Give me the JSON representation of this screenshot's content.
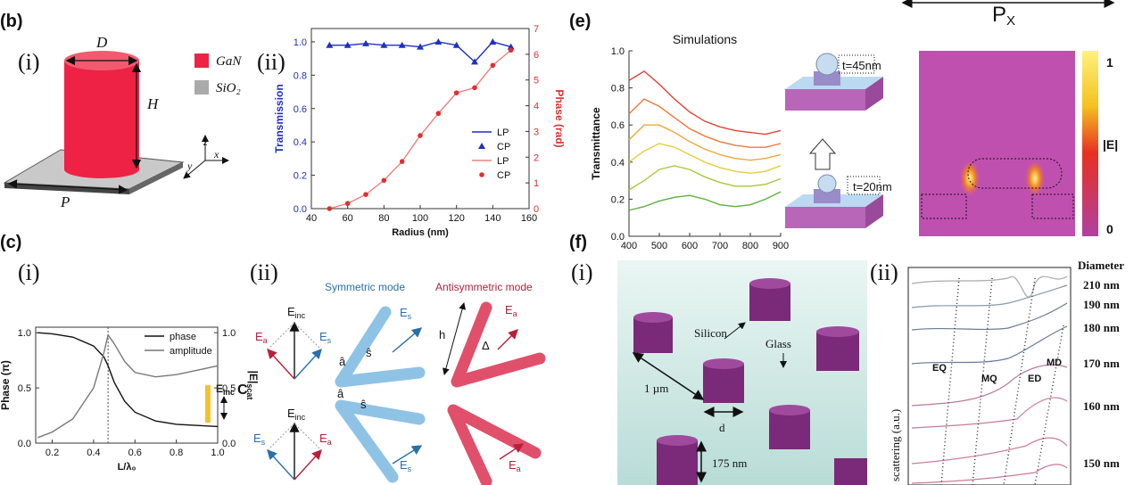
{
  "figure": {
    "px": {
      "text": "P",
      "sub": "X"
    },
    "b": {
      "label": "(b)",
      "i": "(i)",
      "ii": "(ii)",
      "D": "D",
      "H": "H",
      "P": "P",
      "axes": [
        "z",
        "y",
        "x"
      ],
      "legend": [
        "GaN",
        "SiO₂"
      ]
    },
    "c": {
      "label": "(c)",
      "i": "(i)",
      "ii": "(ii)",
      "field": {
        "text": "E",
        "sub": "inc"
      },
      "C": "C",
      "symmetric": "Symmetric mode",
      "antisymmetric": "Antisymmetric mode",
      "vectors": [
        {
          "text": "E",
          "sub": "inc"
        },
        {
          "text": "E",
          "sub": "a"
        },
        {
          "text": "E",
          "sub": "s"
        },
        {
          "text": "E",
          "sub": "inc"
        },
        {
          "text": "E",
          "sub": "s"
        },
        {
          "text": "E",
          "sub": "a"
        },
        {
          "text": "â"
        },
        {
          "text": "ŝ"
        },
        {
          "text": "E",
          "sub": "s"
        },
        {
          "text": "â"
        },
        {
          "text": "ŝ"
        },
        {
          "text": "E",
          "sub": "s"
        },
        {
          "text": "h"
        },
        {
          "text": "Δ"
        },
        {
          "text": "E",
          "sub": "a"
        },
        {
          "text": "E",
          "sub": "a"
        }
      ]
    },
    "e": {
      "label": "(e)",
      "t_top": "t=45nm",
      "t_bottom": "t=20nm",
      "cbar_max": "1",
      "cbar_label": "|E|",
      "cbar_min": "0"
    },
    "f": {
      "label": "(f)",
      "i": "(i)",
      "ii": "(ii)",
      "silicon": "Silicon",
      "glass": "Glass",
      "pitch": "1 µm",
      "d": "d",
      "height": "175 nm",
      "modes": [
        "EQ",
        "MQ",
        "ED",
        "MD"
      ],
      "y_label": "scattering (a.u.)",
      "diameter_title": "Diameter",
      "diameters": [
        "210 nm",
        "190 nm",
        "180 nm",
        "170 nm",
        "160 nm",
        "150 nm"
      ]
    }
  },
  "chart_data": [
    {
      "type": "line",
      "x_label": "Radius (nm)",
      "y_label": "Transmission",
      "y2_label": "Phase (rad)",
      "y_color": "#1f2fc8",
      "y2_color": "#e03030",
      "frame": true,
      "legend": "lower right",
      "x": [
        50,
        60,
        70,
        80,
        90,
        100,
        110,
        120,
        130,
        140,
        150
      ],
      "xlim": [
        40,
        160
      ],
      "xticks": [
        40,
        60,
        80,
        100,
        120,
        140,
        160
      ],
      "ylim": [
        0,
        1.08
      ],
      "yticks": [
        {
          "value": 0,
          "label": "0.0"
        },
        0.2,
        0.4,
        0.6,
        0.8,
        {
          "value": 1,
          "label": "1.0"
        }
      ],
      "y2lim": [
        0,
        7
      ],
      "y2ticks": [
        0,
        1,
        2,
        3,
        4,
        5,
        6,
        7
      ],
      "series": [
        {
          "name": "LP",
          "color": "#1f2fc8",
          "values": [
            0.98,
            0.98,
            0.99,
            0.98,
            0.98,
            0.97,
            1.0,
            0.98,
            0.88,
            1.0,
            0.97
          ]
        },
        {
          "name": "CP",
          "color": "#1f2fc8",
          "line": false,
          "marker": "triangle",
          "values": [
            0.98,
            0.98,
            0.99,
            0.98,
            0.98,
            0.97,
            1.0,
            0.98,
            0.88,
            1.0,
            0.97
          ]
        },
        {
          "name": "LP",
          "color": "#f08080",
          "axis": "y2",
          "values": [
            0,
            0.2,
            0.55,
            1.1,
            1.83,
            2.84,
            3.7,
            4.5,
            4.7,
            5.57,
            6.16
          ]
        },
        {
          "name": "CP",
          "color": "#e03030",
          "axis": "y2",
          "line": false,
          "marker": "circle",
          "values": [
            0,
            0.2,
            0.55,
            1.1,
            1.83,
            2.84,
            3.7,
            4.5,
            4.7,
            5.57,
            6.16
          ]
        }
      ]
    },
    {
      "type": "line",
      "x_label": "L/λ₀",
      "y_label": "Phase (π)",
      "y2_label": "|E|",
      "y2_label_sub": "scat",
      "frame": true,
      "legend": "upper right",
      "vline": 0.47,
      "x": [
        0.13,
        0.2,
        0.3,
        0.4,
        0.45,
        0.47,
        0.5,
        0.55,
        0.6,
        0.7,
        0.8,
        0.9,
        1.0
      ],
      "xlim": [
        0.12,
        1.0
      ],
      "xticks": [
        0.2,
        0.4,
        0.6,
        0.8,
        {
          "value": 1,
          "label": "1.0"
        }
      ],
      "ylim": [
        0,
        1.05
      ],
      "yticks": [
        {
          "value": 0,
          "label": "0.0"
        },
        0.5,
        {
          "value": 1,
          "label": "1.0"
        }
      ],
      "y2lim": [
        0,
        1.05
      ],
      "y2ticks": [
        {
          "value": 0,
          "label": "0.0"
        },
        0.5,
        {
          "value": 1,
          "label": "1.0"
        }
      ],
      "series": [
        {
          "name": "phase",
          "color": "#111111",
          "values": [
            1.0,
            0.99,
            0.96,
            0.88,
            0.78,
            0.7,
            0.55,
            0.38,
            0.28,
            0.2,
            0.17,
            0.16,
            0.15
          ]
        },
        {
          "name": "amplitude",
          "color": "#777777",
          "axis": "y2",
          "values": [
            0.05,
            0.1,
            0.22,
            0.5,
            0.82,
            0.98,
            0.9,
            0.74,
            0.64,
            0.6,
            0.62,
            0.66,
            0.7
          ]
        }
      ]
    },
    {
      "type": "line",
      "title": "Simulations",
      "y_label": "Transmittance",
      "frame": false,
      "x": [
        400,
        450,
        500,
        550,
        600,
        650,
        700,
        750,
        800,
        850,
        900
      ],
      "xlim": [
        400,
        900
      ],
      "xticks": [
        400,
        500,
        600,
        700,
        800,
        900
      ],
      "ylim": [
        0,
        1.0
      ],
      "yticks": [
        {
          "value": 0,
          "label": "0.0"
        },
        0.2,
        0.4,
        0.6,
        0.8,
        {
          "value": 1,
          "label": "1.0"
        }
      ],
      "series": [
        {
          "color": "#e0443a",
          "values": [
            0.84,
            0.89,
            0.82,
            0.74,
            0.67,
            0.62,
            0.59,
            0.57,
            0.56,
            0.55,
            0.57
          ]
        },
        {
          "color": "#f07a3a",
          "values": [
            0.66,
            0.74,
            0.7,
            0.64,
            0.58,
            0.54,
            0.51,
            0.49,
            0.48,
            0.48,
            0.5
          ]
        },
        {
          "color": "#f2a63a",
          "values": [
            0.52,
            0.6,
            0.6,
            0.56,
            0.51,
            0.47,
            0.44,
            0.42,
            0.41,
            0.42,
            0.44
          ]
        },
        {
          "color": "#e6cc3c",
          "values": [
            0.4,
            0.46,
            0.5,
            0.48,
            0.44,
            0.4,
            0.37,
            0.35,
            0.34,
            0.35,
            0.38
          ]
        },
        {
          "color": "#a8c83c",
          "values": [
            0.25,
            0.3,
            0.36,
            0.38,
            0.36,
            0.32,
            0.29,
            0.27,
            0.27,
            0.28,
            0.31
          ]
        },
        {
          "color": "#5cb040",
          "values": [
            0.14,
            0.16,
            0.19,
            0.21,
            0.22,
            0.2,
            0.17,
            0.16,
            0.17,
            0.2,
            0.24
          ]
        }
      ]
    }
  ]
}
